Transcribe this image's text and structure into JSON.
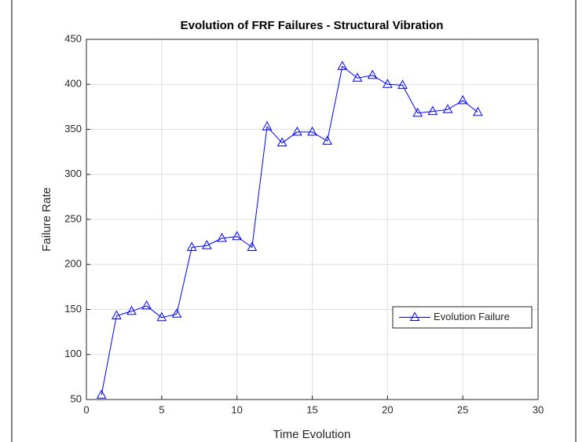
{
  "chart_data": {
    "type": "line",
    "title": "Evolution of FRF Failures - Structural Vibration",
    "xlabel": "Time Evolution",
    "ylabel": "Failure Rate",
    "x": [
      1,
      2,
      3,
      4,
      5,
      6,
      7,
      8,
      9,
      10,
      11,
      12,
      13,
      14,
      15,
      16,
      17,
      18,
      19,
      20,
      21,
      22,
      23,
      24,
      25,
      26
    ],
    "series": [
      {
        "name": "Evolution Failure",
        "color": "#0000ff",
        "values": [
          55,
          143,
          148,
          154,
          141,
          145,
          219,
          221,
          229,
          231,
          219,
          353,
          335,
          347,
          347,
          337,
          420,
          407,
          410,
          400,
          399,
          368,
          370,
          372,
          382,
          369
        ]
      }
    ],
    "xlim": [
      0,
      30
    ],
    "xticks": [
      0,
      5,
      10,
      15,
      20,
      25,
      30
    ],
    "ylim": [
      50,
      450
    ],
    "yticks": [
      50,
      100,
      150,
      200,
      250,
      300,
      350,
      400,
      450
    ],
    "grid": true,
    "legend": "right"
  }
}
